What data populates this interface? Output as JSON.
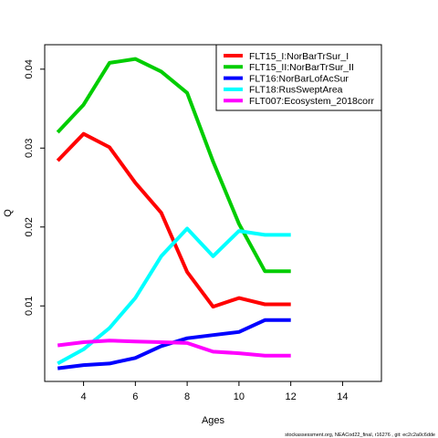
{
  "chart_data": {
    "type": "line",
    "xlabel": "Ages",
    "ylabel": "Q",
    "xlim": [
      2.5,
      15.5
    ],
    "ylim": [
      0.00043,
      0.0431
    ],
    "xticks": [
      4,
      6,
      8,
      10,
      12,
      14
    ],
    "yticks": [
      0.01,
      0.02,
      0.03,
      0.04
    ],
    "ytick_labels": [
      "0.01",
      "0.02",
      "0.03",
      "0.04"
    ],
    "legend_position": "top-right",
    "series": [
      {
        "name": "FLT15_I:NorBarTrSur_I",
        "color": "#ff0000",
        "x": [
          3,
          4,
          5,
          6,
          7,
          8,
          9,
          10,
          11,
          12
        ],
        "y": [
          0.0284,
          0.0318,
          0.0301,
          0.0256,
          0.0218,
          0.0143,
          0.0099,
          0.011,
          0.0102,
          0.0102
        ]
      },
      {
        "name": "FLT15_II:NorBarTrSur_II",
        "color": "#00cd00",
        "x": [
          3,
          4,
          5,
          6,
          7,
          8,
          9,
          10,
          11,
          12
        ],
        "y": [
          0.032,
          0.0355,
          0.0408,
          0.0413,
          0.0397,
          0.037,
          0.0283,
          0.0204,
          0.0144,
          0.0144
        ]
      },
      {
        "name": "FLT16:NorBarLofAcSur",
        "color": "#0000ff",
        "x": [
          3,
          4,
          5,
          6,
          7,
          8,
          9,
          10,
          11,
          12
        ],
        "y": [
          0.0021,
          0.0025,
          0.0027,
          0.0034,
          0.0049,
          0.0059,
          0.0063,
          0.0067,
          0.0082,
          0.0082
        ]
      },
      {
        "name": "FLT18:RusSweptArea",
        "color": "#00ffff",
        "x": [
          3,
          4,
          5,
          6,
          7,
          8,
          9,
          10,
          11,
          12
        ],
        "y": [
          0.0027,
          0.0045,
          0.0072,
          0.011,
          0.0163,
          0.0198,
          0.0163,
          0.0195,
          0.019,
          0.019
        ]
      },
      {
        "name": "FLT007:Ecosystem_2018corr",
        "color": "#ff00ff",
        "x": [
          3,
          4,
          5,
          6,
          7,
          8,
          9,
          10,
          11,
          12
        ],
        "y": [
          0.005,
          0.0054,
          0.0056,
          0.0055,
          0.0054,
          0.0053,
          0.0042,
          0.004,
          0.0037,
          0.0037
        ]
      }
    ]
  },
  "footer": "stockassessment.org, NEACod22_final, r16276 ,  git: ec2c2a0c6dde"
}
